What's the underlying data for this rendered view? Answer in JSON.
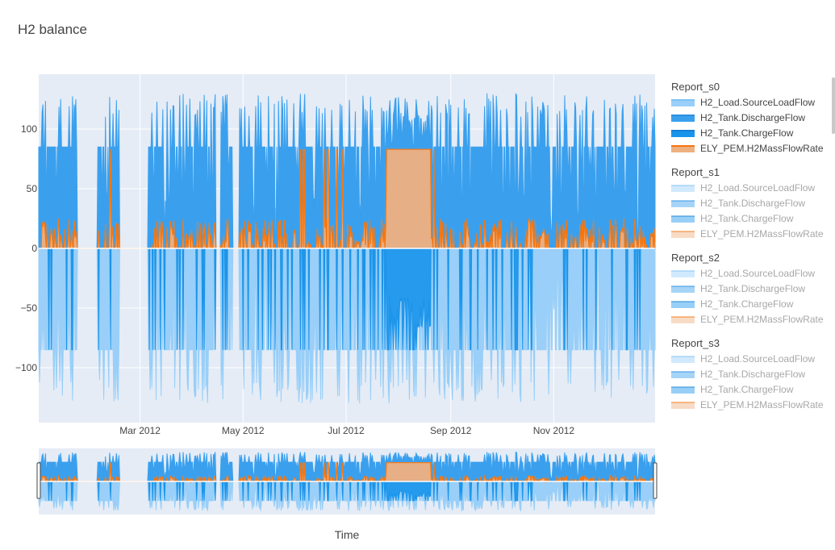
{
  "chart_data": {
    "type": "area",
    "title": "H2 balance",
    "xlabel": "Time",
    "ylabel": "",
    "x_range": [
      "2012-01-01",
      "2012-12-31"
    ],
    "ylim": [
      -146,
      146
    ],
    "yticks": [
      100,
      50,
      0,
      -50,
      -100
    ],
    "ytick_labels": [
      "100",
      "50",
      "0",
      "−50",
      "−100"
    ],
    "xticks": [
      "2012-03-01",
      "2012-05-01",
      "2012-07-01",
      "2012-09-01",
      "2012-11-01"
    ],
    "xtick_labels": [
      "Mar 2012",
      "May 2012",
      "Jul 2012",
      "Sep 2012",
      "Nov 2012"
    ],
    "grid": true,
    "legend_position": "right",
    "range_slider": true,
    "colors": {
      "source_load": "#99cff8",
      "discharge": "#3aa0ee",
      "charge": "#1a94ea",
      "electrolyzer": "#f5760f",
      "electrolyzer_fill": "#efb07f",
      "plot_bg": "#e5ecf6"
    },
    "series": [
      {
        "name": "H2_Load.SourceLoadFlow",
        "description": "negative consumption, typical -85, peaks -130"
      },
      {
        "name": "H2_Tank.DischargeFlow",
        "description": "positive supply, typical 85, peaks 130"
      },
      {
        "name": "H2_Tank.ChargeFlow",
        "description": "negative, typical -30, peaks -85"
      },
      {
        "name": "ELY_PEM.H2MassFlowRate",
        "description": "positive, mostly 0-25, plateau 83 from late Jul to mid Aug"
      }
    ],
    "key_values": {
      "discharge_typical_peak": 85,
      "discharge_max": 130,
      "load_typical": -85,
      "load_min": -130,
      "electrolyzer_plateau": 83,
      "electrolyzer_plateau_range": [
        "2012-07-25",
        "2012-08-20"
      ],
      "charge_typical": -30,
      "charge_min": -85
    },
    "gaps": [
      {
        "from": "2012-01-24",
        "to": "2012-02-05"
      },
      {
        "from": "2012-02-18",
        "to": "2012-03-06"
      },
      {
        "from": "2012-04-15",
        "to": "2012-04-18"
      },
      {
        "from": "2012-04-25",
        "to": "2012-04-29"
      }
    ],
    "legend_groups": [
      {
        "title": "Report_s0",
        "items": [
          "H2_Load.SourceLoadFlow",
          "H2_Tank.DischargeFlow",
          "H2_Tank.ChargeFlow",
          "ELY_PEM.H2MassFlowRate"
        ],
        "visible": true
      },
      {
        "title": "Report_s1",
        "items": [
          "H2_Load.SourceLoadFlow",
          "H2_Tank.DischargeFlow",
          "H2_Tank.ChargeFlow",
          "ELY_PEM.H2MassFlowRate"
        ],
        "visible": false
      },
      {
        "title": "Report_s2",
        "items": [
          "H2_Load.SourceLoadFlow",
          "H2_Tank.DischargeFlow",
          "H2_Tank.ChargeFlow",
          "ELY_PEM.H2MassFlowRate"
        ],
        "visible": false
      },
      {
        "title": "Report_s3",
        "items": [
          "H2_Load.SourceLoadFlow",
          "H2_Tank.DischargeFlow",
          "H2_Tank.ChargeFlow",
          "ELY_PEM.H2MassFlowRate"
        ],
        "visible": false
      }
    ]
  }
}
